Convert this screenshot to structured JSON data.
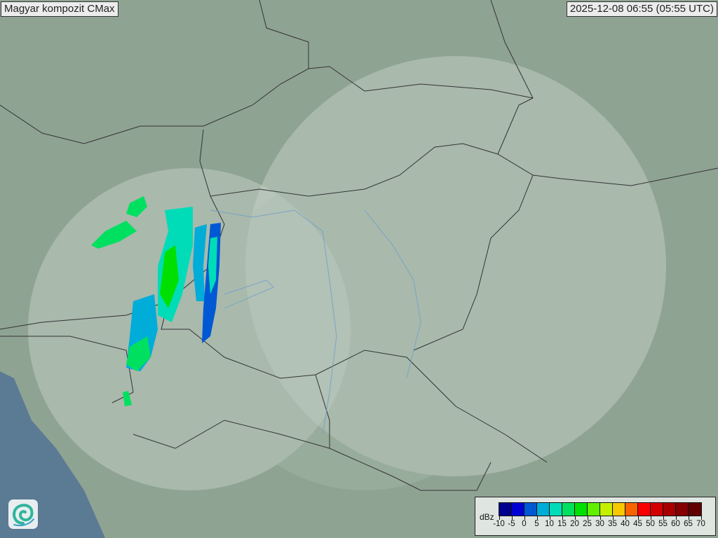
{
  "header": {
    "title": "Magyar kompozit  CMax",
    "timestamp": "2025-12-08 06:55 (05:55 UTC)"
  },
  "logo": {
    "icon": "spiral-logo-icon"
  },
  "legend": {
    "unit": "dBz",
    "ticks": [
      "-10",
      "-5",
      "0",
      "5",
      "10",
      "15",
      "20",
      "25",
      "30",
      "35",
      "40",
      "45",
      "50",
      "55",
      "60",
      "65",
      "70"
    ],
    "colors": [
      "#00008f",
      "#0000d4",
      "#0058d4",
      "#00acd8",
      "#00dcb8",
      "#00e060",
      "#00e000",
      "#60f000",
      "#c4f000",
      "#f8c800",
      "#f86400",
      "#f80000",
      "#d40000",
      "#a80000",
      "#840000",
      "#600000"
    ]
  },
  "map": {
    "background": "#8fa393",
    "coverage_color": "#c9d5cc",
    "sea_color": "#5b7a94"
  }
}
